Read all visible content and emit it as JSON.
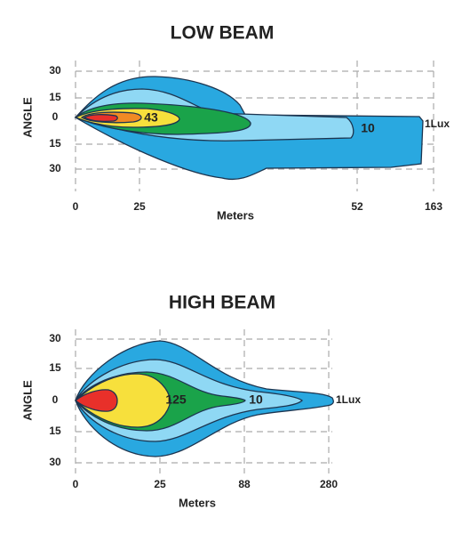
{
  "low_beam": {
    "title": "LOW BEAM",
    "y_label": "ANGLE",
    "x_label": "Meters",
    "y_ticks": [
      "30",
      "15",
      "0",
      "15",
      "30"
    ],
    "x_ticks": [
      "0",
      "25",
      "52",
      "163"
    ],
    "contour_labels": [
      "43",
      "10",
      "1Lux"
    ]
  },
  "high_beam": {
    "title": "HIGH BEAM",
    "y_label": "ANGLE",
    "x_label": "Meters",
    "y_ticks": [
      "30",
      "15",
      "0",
      "15",
      "30"
    ],
    "x_ticks": [
      "0",
      "25",
      "88",
      "280"
    ],
    "contour_labels": [
      "125",
      "10",
      "1Lux"
    ]
  }
}
